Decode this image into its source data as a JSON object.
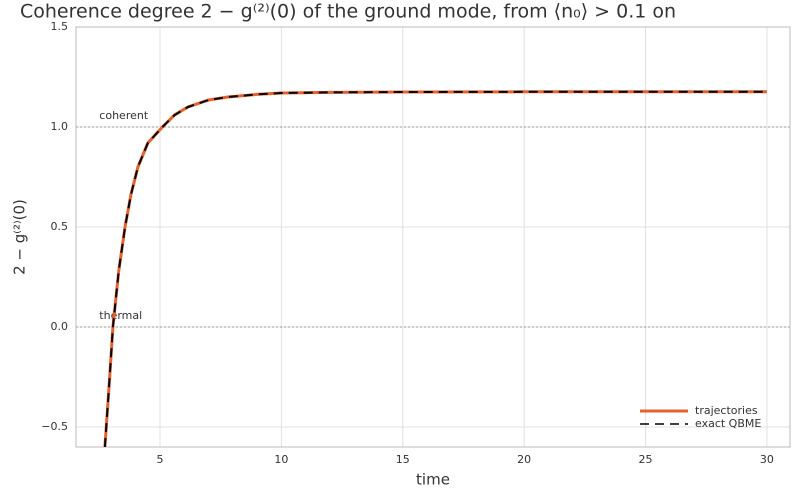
{
  "chart_data": {
    "type": "line",
    "title": "Coherence degree 2 − g⁽²⁾(0) of the ground mode, from ⟨n₀⟩ > 0.1 on",
    "xlabel": "time",
    "ylabel": "2 − g⁽²⁾(0)",
    "x": [
      2.73,
      2.9,
      3.06,
      3.3,
      3.56,
      3.8,
      4.09,
      4.5,
      5.1,
      5.6,
      6.15,
      7,
      7.8,
      9,
      10,
      12,
      15,
      20,
      25,
      30
    ],
    "series": [
      {
        "name": "trajectories",
        "color": "#e8602c",
        "dash": false,
        "values": [
          -0.6,
          -0.3,
          0.0,
          0.28,
          0.5,
          0.66,
          0.8,
          0.92,
          1.0,
          1.06,
          1.1,
          1.135,
          1.15,
          1.163,
          1.17,
          1.173,
          1.175,
          1.176,
          1.176,
          1.176
        ]
      },
      {
        "name": "exact QBME",
        "color": "#000000",
        "dash": true,
        "values": [
          -0.6,
          -0.3,
          0.0,
          0.28,
          0.5,
          0.66,
          0.8,
          0.92,
          1.0,
          1.06,
          1.1,
          1.135,
          1.15,
          1.163,
          1.17,
          1.173,
          1.175,
          1.176,
          1.176,
          1.176
        ]
      }
    ],
    "xlim": [
      1.54,
      30.95
    ],
    "ylim": [
      -0.6,
      1.5
    ],
    "xticks": [
      5,
      10,
      15,
      20,
      25,
      30
    ],
    "yticks": [
      {
        "value": -0.5,
        "label": "−0.5"
      },
      {
        "value": 0,
        "label": "0.0"
      },
      0.5,
      {
        "value": 1,
        "label": "1.0"
      },
      1.5
    ],
    "grid": true,
    "legend": "lower right",
    "annotations": [
      {
        "text": "coherent",
        "x": 2.5,
        "y": 1
      },
      {
        "text": "thermal",
        "x": 2.5,
        "y": 0
      }
    ]
  }
}
